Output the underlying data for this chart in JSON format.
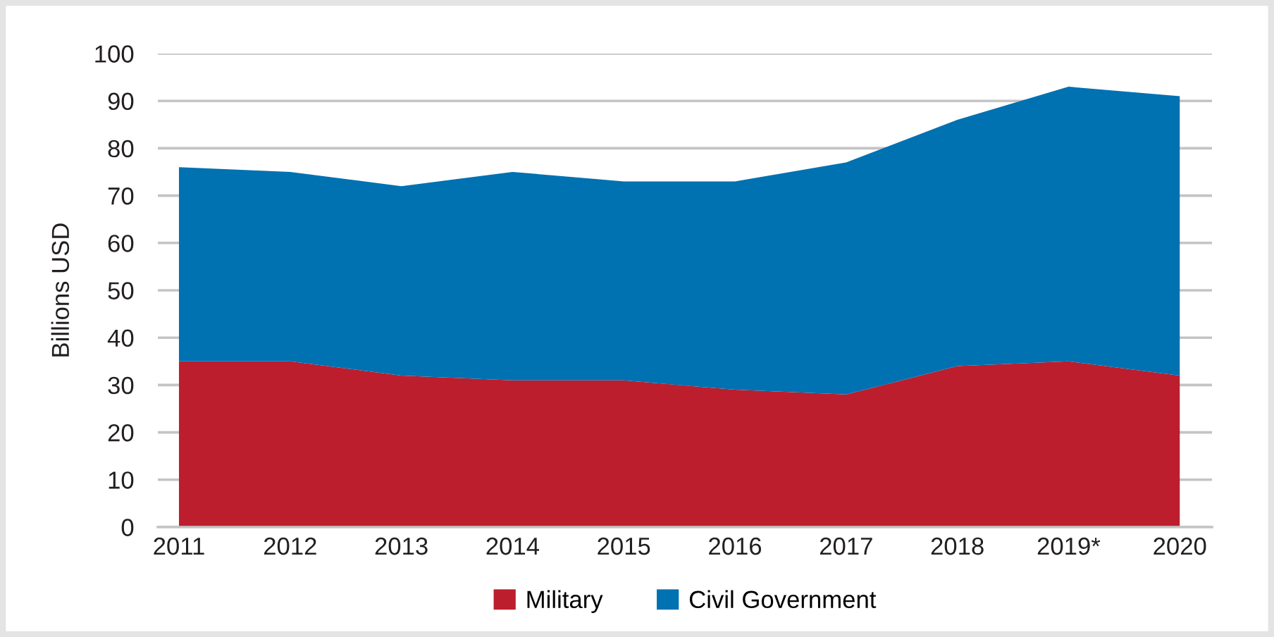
{
  "chart_data": {
    "type": "area",
    "stacked": true,
    "ylabel": "Billions USD",
    "categories": [
      "2011",
      "2012",
      "2013",
      "2014",
      "2015",
      "2016",
      "2017",
      "2018",
      "2019*",
      "2020"
    ],
    "series": [
      {
        "name": "Military",
        "color": "#bc1e2d",
        "values": [
          35,
          35,
          32,
          31,
          31,
          29,
          28,
          34,
          35,
          32
        ]
      },
      {
        "name": "Civil Government",
        "color": "#0071b1",
        "values": [
          41,
          40,
          40,
          44,
          42,
          44,
          49,
          52,
          58,
          59
        ]
      }
    ],
    "ylim": [
      0,
      100
    ],
    "yticks": [
      0,
      10,
      20,
      30,
      40,
      50,
      60,
      70,
      80,
      90,
      100
    ],
    "grid": "y",
    "legend": "bottom"
  }
}
